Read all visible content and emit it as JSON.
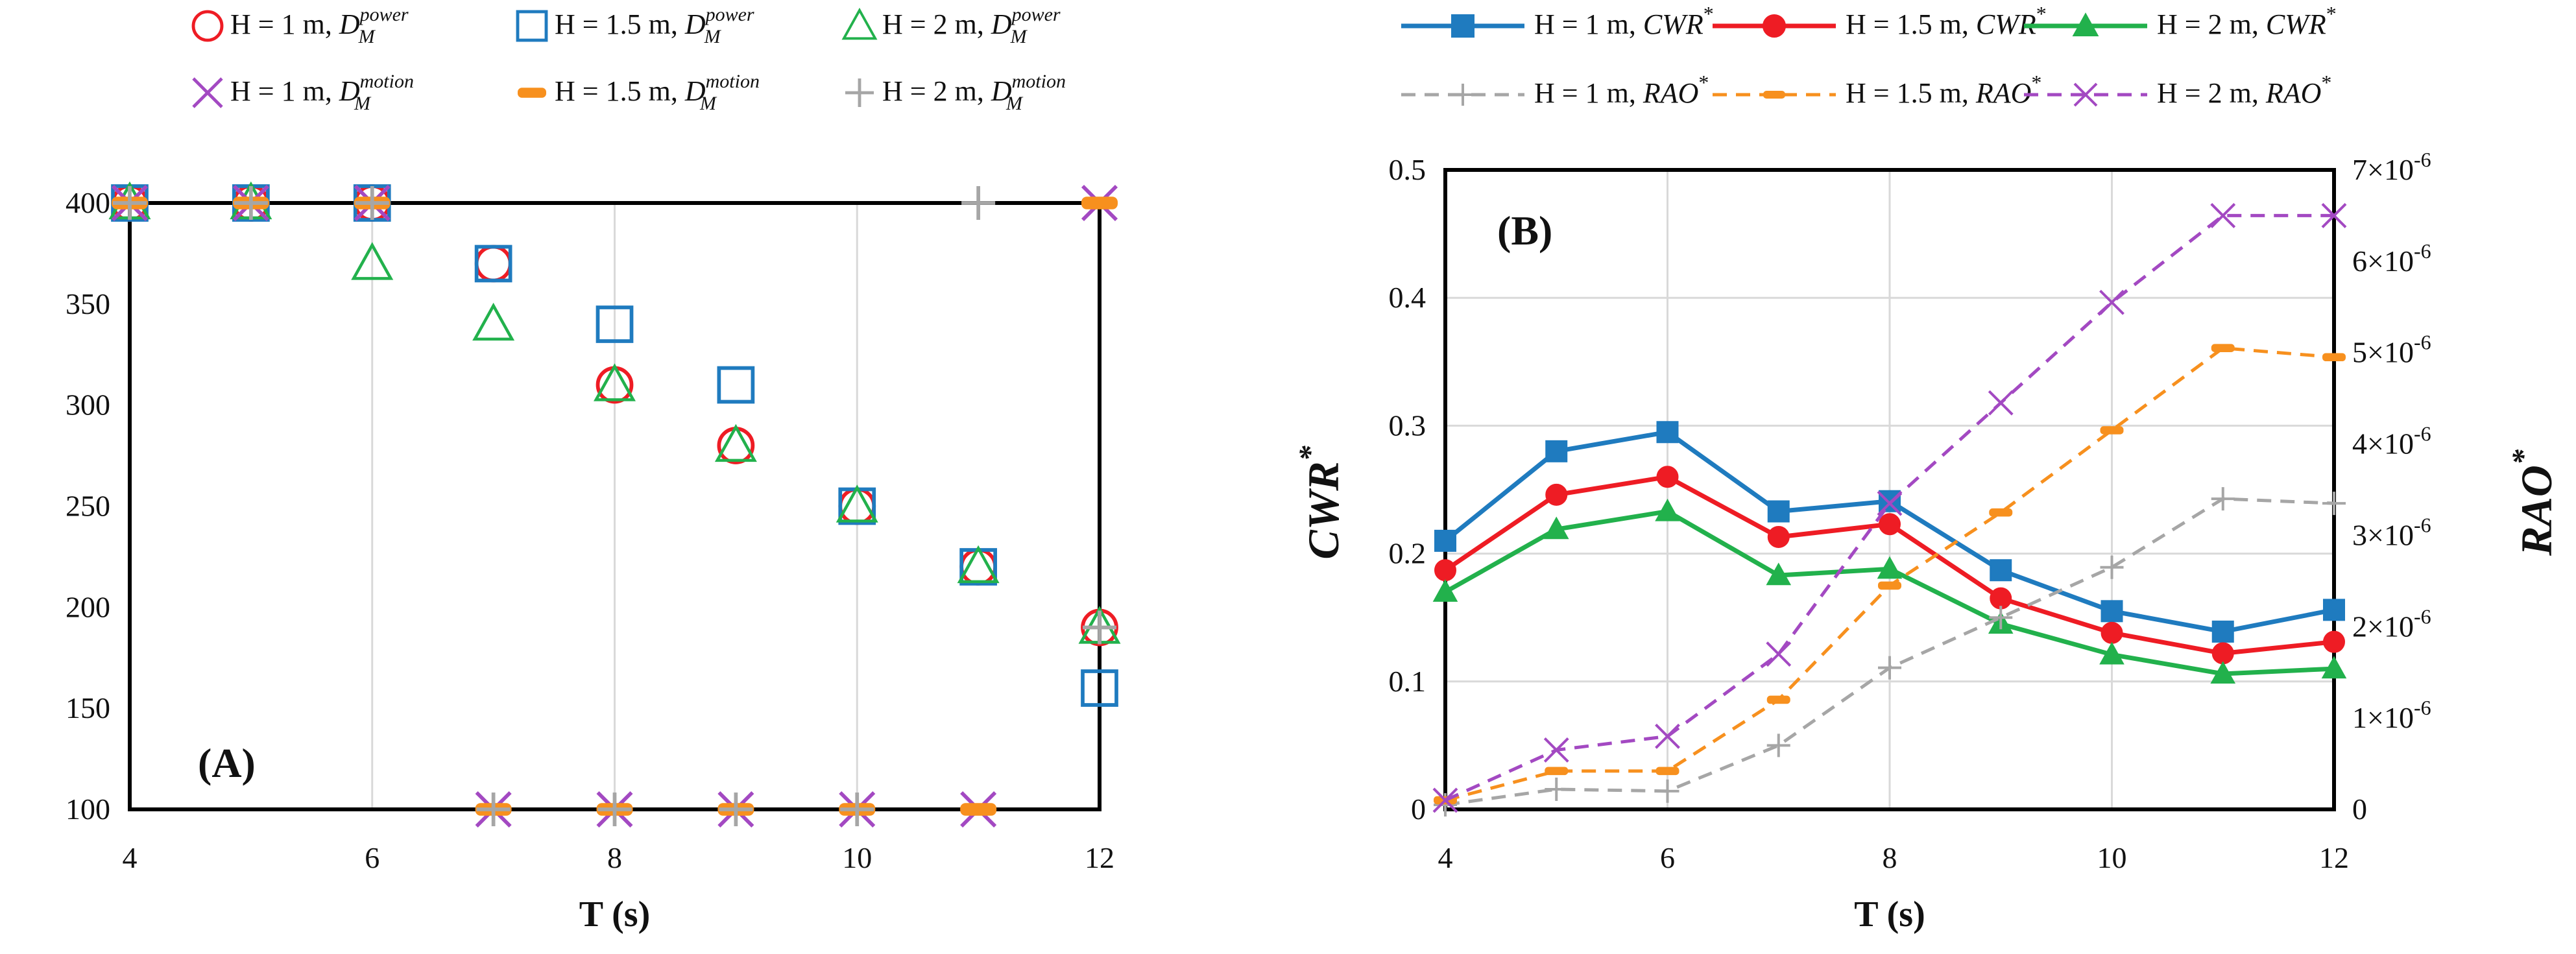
{
  "chart_data": [
    {
      "id": "A",
      "type": "scatter",
      "panel_label": "(A)",
      "xlabel": "T (s)",
      "ylabel": "",
      "xlim": [
        4,
        12
      ],
      "ylim": [
        100,
        400
      ],
      "xticks": [
        4,
        6,
        8,
        10,
        12
      ],
      "yticks": [
        100,
        150,
        200,
        250,
        300,
        350,
        400
      ],
      "series": [
        {
          "name": "H = 1 m, D_M^power",
          "legend_text": "H = 1 m, ",
          "legend_sym": "D",
          "legend_sub": "M",
          "legend_sup": "power",
          "marker": "circle",
          "color": "#ee1c24",
          "x": [
            4,
            5,
            6,
            7,
            8,
            9,
            10,
            11,
            12
          ],
          "y": [
            400,
            400,
            400,
            370,
            310,
            280,
            250,
            220,
            190
          ]
        },
        {
          "name": "H = 1.5 m, D_M^power",
          "legend_text": "H = 1.5 m, ",
          "legend_sym": "D",
          "legend_sub": "M",
          "legend_sup": "power",
          "marker": "square",
          "color": "#1f7bbf",
          "x": [
            4,
            5,
            6,
            7,
            8,
            9,
            10,
            11,
            12
          ],
          "y": [
            400,
            400,
            400,
            370,
            340,
            310,
            250,
            220,
            160
          ]
        },
        {
          "name": "H = 2 m, D_M^power",
          "legend_text": "H = 2 m, ",
          "legend_sym": "D",
          "legend_sub": "M",
          "legend_sup": "power",
          "marker": "triangle",
          "color": "#22b14c",
          "x": [
            4,
            5,
            6,
            7,
            8,
            9,
            10,
            11,
            12
          ],
          "y": [
            400,
            400,
            370,
            340,
            310,
            280,
            250,
            220,
            190
          ]
        },
        {
          "name": "H = 1 m, D_M^motion",
          "legend_text": "H = 1 m, ",
          "legend_sym": "D",
          "legend_sub": "M",
          "legend_sup": "motion",
          "marker": "x",
          "color": "#a349c2",
          "x": [
            4,
            5,
            6,
            7,
            8,
            9,
            10,
            11,
            12
          ],
          "y": [
            400,
            400,
            400,
            100,
            100,
            100,
            100,
            100,
            400
          ]
        },
        {
          "name": "H = 1.5 m, D_M^motion",
          "legend_text": "H = 1.5 m, ",
          "legend_sym": "D",
          "legend_sub": "M",
          "legend_sup": "motion",
          "marker": "dash",
          "color": "#f7901e",
          "x": [
            4,
            5,
            6,
            7,
            8,
            9,
            10,
            11,
            12
          ],
          "y": [
            400,
            400,
            400,
            100,
            100,
            100,
            100,
            100,
            400
          ]
        },
        {
          "name": "H = 2 m, D_M^motion",
          "legend_text": "H = 2 m, ",
          "legend_sym": "D",
          "legend_sub": "M",
          "legend_sup": "motion",
          "marker": "plus",
          "color": "#a6a6a6",
          "x": [
            4,
            5,
            6,
            7,
            8,
            9,
            10,
            11,
            12
          ],
          "y": [
            400,
            400,
            400,
            100,
            100,
            100,
            100,
            400,
            190
          ]
        }
      ]
    },
    {
      "id": "B",
      "type": "line",
      "panel_label": "(B)",
      "xlabel": "T (s)",
      "ylabel_left": "CWR",
      "ylabel_left_sup": "*",
      "ylabel_right": "RAO",
      "ylabel_right_sup": "*",
      "xlim": [
        4,
        12
      ],
      "ylim_left": [
        0,
        0.5
      ],
      "ylim_right": [
        0,
        7e-06
      ],
      "xticks": [
        4,
        6,
        8,
        10,
        12
      ],
      "yticks_left": [
        "0",
        "0.1",
        "0.2",
        "0.3",
        "0.4",
        "0.5"
      ],
      "yticks_left_values": [
        0,
        0.1,
        0.2,
        0.3,
        0.4,
        0.5
      ],
      "yticks_right_values": [
        0,
        1e-06,
        2e-06,
        3e-06,
        4e-06,
        5e-06,
        6e-06,
        7e-06
      ],
      "yticks_right": [
        {
          "base": "0",
          "exp": ""
        },
        {
          "base": "1×10",
          "exp": "-6"
        },
        {
          "base": "2×10",
          "exp": "-6"
        },
        {
          "base": "3×10",
          "exp": "-6"
        },
        {
          "base": "4×10",
          "exp": "-6"
        },
        {
          "base": "5×10",
          "exp": "-6"
        },
        {
          "base": "6×10",
          "exp": "-6"
        },
        {
          "base": "7×10",
          "exp": "-6"
        }
      ],
      "series": [
        {
          "name": "H = 1 m, CWR*",
          "legend_text": "H = 1 m, ",
          "legend_sym": "CWR",
          "axis": "left",
          "style": "solid",
          "marker": "square",
          "color": "#1f7bbf",
          "x": [
            4,
            5,
            6,
            7,
            8,
            9,
            10,
            11,
            12
          ],
          "y": [
            0.21,
            0.28,
            0.295,
            0.233,
            0.241,
            0.187,
            0.155,
            0.139,
            0.156
          ]
        },
        {
          "name": "H = 1.5 m, CWR*",
          "legend_text": "H = 1.5 m, ",
          "legend_sym": "CWR",
          "axis": "left",
          "style": "solid",
          "marker": "circle",
          "color": "#ee1c24",
          "x": [
            4,
            5,
            6,
            7,
            8,
            9,
            10,
            11,
            12
          ],
          "y": [
            0.187,
            0.246,
            0.26,
            0.213,
            0.223,
            0.165,
            0.138,
            0.122,
            0.131
          ]
        },
        {
          "name": "H = 2 m, CWR*",
          "legend_text": "H = 2 m, ",
          "legend_sym": "CWR",
          "axis": "left",
          "style": "solid",
          "marker": "triangle",
          "color": "#22b14c",
          "x": [
            4,
            5,
            6,
            7,
            8,
            9,
            10,
            11,
            12
          ],
          "y": [
            0.17,
            0.219,
            0.233,
            0.183,
            0.188,
            0.145,
            0.121,
            0.106,
            0.11
          ]
        },
        {
          "name": "H = 1 m, RAO*",
          "legend_text": "H = 1 m, ",
          "legend_sym": "RAO",
          "axis": "right",
          "style": "dashed",
          "marker": "plus",
          "color": "#a6a6a6",
          "x": [
            4,
            5,
            6,
            7,
            8,
            9,
            10,
            11,
            12
          ],
          "y": [
            5e-08,
            2.2e-07,
            2e-07,
            7e-07,
            1.55e-06,
            2.1e-06,
            2.65e-06,
            3.4e-06,
            3.35e-06
          ]
        },
        {
          "name": "H = 1.5 m, RAO*",
          "legend_text": "H = 1.5 m, ",
          "legend_sym": "RAO",
          "axis": "right",
          "style": "dashed",
          "marker": "dash",
          "color": "#f7901e",
          "x": [
            4,
            5,
            6,
            7,
            8,
            9,
            10,
            11,
            12
          ],
          "y": [
            1e-07,
            4.2e-07,
            4.2e-07,
            1.2e-06,
            2.45e-06,
            3.25e-06,
            4.15e-06,
            5.05e-06,
            4.95e-06
          ]
        },
        {
          "name": "H = 2 m, RAO*",
          "legend_text": "H = 2 m, ",
          "legend_sym": "RAO",
          "axis": "right",
          "style": "dashed",
          "marker": "x",
          "color": "#a349c2",
          "x": [
            4,
            5,
            6,
            7,
            8,
            9,
            10,
            11,
            12
          ],
          "y": [
            1e-07,
            6.5e-07,
            8e-07,
            1.7e-06,
            3.35e-06,
            4.45e-06,
            5.55e-06,
            6.5e-06,
            6.5e-06
          ]
        }
      ]
    }
  ]
}
